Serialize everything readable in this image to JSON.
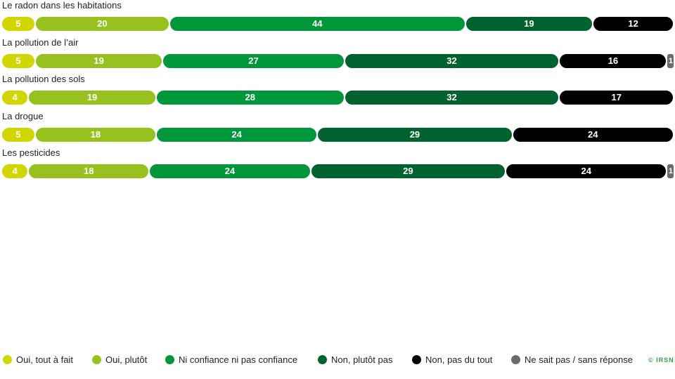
{
  "chart_data": {
    "type": "bar",
    "orientation": "horizontal-stacked",
    "categories": [
      "Le radon dans les habitations",
      "La pollution de l’air",
      "La pollution des sols",
      "La drogue",
      "Les pesticides"
    ],
    "series": [
      {
        "name": "Oui, tout à fait",
        "color": "#d2d600",
        "values": [
          5,
          5,
          4,
          5,
          4
        ]
      },
      {
        "name": "Oui, plutôt",
        "color": "#97c11f",
        "values": [
          20,
          19,
          19,
          18,
          18
        ]
      },
      {
        "name": "Ni confiance ni pas confiance",
        "color": "#00973a",
        "values": [
          44,
          27,
          28,
          24,
          24
        ]
      },
      {
        "name": "Non, plutôt pas",
        "color": "#00622e",
        "values": [
          19,
          32,
          32,
          29,
          29
        ]
      },
      {
        "name": "Non, pas du tout",
        "color": "#000000",
        "values": [
          12,
          16,
          17,
          24,
          24
        ]
      },
      {
        "name": "Ne sait pas / sans réponse",
        "color": "#6b6b6b",
        "values": [
          0,
          1,
          0,
          0,
          1
        ]
      }
    ],
    "data_labels": true,
    "legend_position": "bottom"
  },
  "credit": "© IRSN"
}
